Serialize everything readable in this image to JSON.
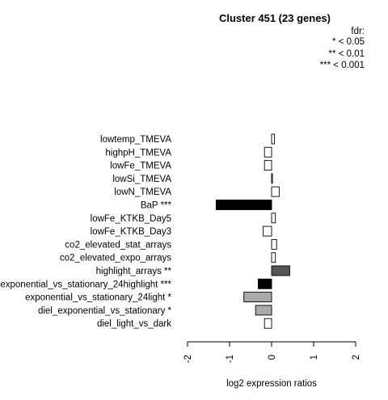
{
  "chart_data": {
    "type": "bar",
    "orientation": "horizontal",
    "title": "Cluster 451 (23 genes)",
    "xlabel": "log2 expression ratios",
    "ylabel": "",
    "xlim": [
      -2,
      2
    ],
    "x_ticks": [
      "-2",
      "-1",
      "0",
      "1",
      "2"
    ],
    "legend": {
      "title": "fdr:",
      "entries": [
        "* < 0.05",
        "** < 0.01",
        "*** < 0.001"
      ],
      "placement": "top-right"
    },
    "bars": [
      {
        "label": "lowtemp_TMEVA",
        "value": 0.07,
        "color": "#ffffff"
      },
      {
        "label": "highpH_TMEVA",
        "value": -0.17,
        "color": "#ffffff"
      },
      {
        "label": "lowFe_TMEVA",
        "value": -0.17,
        "color": "#ffffff"
      },
      {
        "label": "lowSi_TMEVA",
        "value": 0.01,
        "color": "#ffffff"
      },
      {
        "label": "lowN_TMEVA",
        "value": 0.18,
        "color": "#ffffff"
      },
      {
        "label": "BaP ***",
        "value": -1.32,
        "color": "#000000"
      },
      {
        "label": "lowFe_KTKB_Day5",
        "value": 0.09,
        "color": "#ffffff"
      },
      {
        "label": "lowFe_KTKB_Day3",
        "value": -0.2,
        "color": "#ffffff"
      },
      {
        "label": "co2_elevated_stat_arrays",
        "value": 0.12,
        "color": "#ffffff"
      },
      {
        "label": "co2_elevated_expo_arrays",
        "value": 0.09,
        "color": "#ffffff"
      },
      {
        "label": "highlight_arrays **",
        "value": 0.43,
        "color": "#555555"
      },
      {
        "label": "exponential_vs_stationary_24highlight ***",
        "value": -0.32,
        "color": "#000000"
      },
      {
        "label": "exponential_vs_stationary_24light *",
        "value": -0.66,
        "color": "#aaaaaa"
      },
      {
        "label": "diel_exponential_vs_stationary *",
        "value": -0.38,
        "color": "#aaaaaa"
      },
      {
        "label": "diel_light_vs_dark",
        "value": -0.17,
        "color": "#ffffff"
      }
    ]
  }
}
